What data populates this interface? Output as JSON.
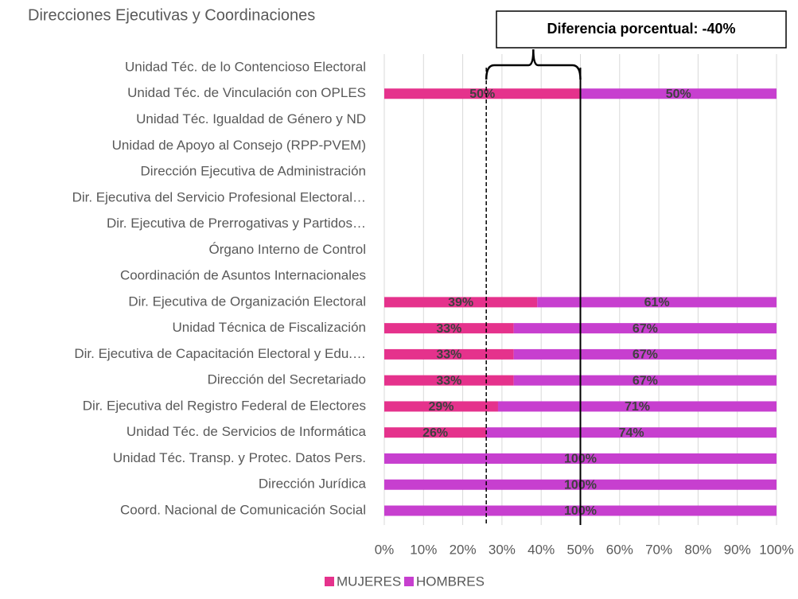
{
  "chart_data": {
    "type": "stacked_barh",
    "title": "Direcciones Ejecutivas y Coordinaciones",
    "annotation": "Diferencia porcentual: -40%",
    "categories": [
      "Unidad Téc. de lo Contencioso Electoral",
      "Unidad Téc. de Vinculación con OPLES",
      "Unidad Téc. Igualdad de Género y ND",
      "Unidad de Apoyo al Consejo (RPP-PVEM)",
      "Dirección Ejecutiva de Administración",
      "Dir. Ejecutiva del Servicio Profesional Electoral…",
      "Dir. Ejecutiva de Prerrogativas y Partidos…",
      "Órgano Interno de Control",
      "Coordinación de Asuntos Internacionales",
      "Dir. Ejecutiva de Organización Electoral",
      "Unidad Técnica de Fiscalización",
      "Dir. Ejecutiva de Capacitación Electoral y Edu.…",
      "Dirección del Secretariado",
      "Dir. Ejecutiva del Registro Federal de Electores",
      "Unidad Téc. de Servicios de Informática",
      "Unidad Téc. Transp. y Protec. Datos Pers.",
      "Dirección Jurídica",
      "Coord. Nacional de Comunicación Social"
    ],
    "series": [
      {
        "name": "MUJERES",
        "color": "#e5328c",
        "values": [
          null,
          50,
          null,
          null,
          null,
          null,
          null,
          null,
          null,
          39,
          33,
          33,
          33,
          29,
          26,
          0,
          0,
          0
        ],
        "value_labels": [
          null,
          "50%",
          null,
          null,
          null,
          null,
          null,
          null,
          null,
          "39%",
          "33%",
          "33%",
          "33%",
          "29%",
          "26%",
          null,
          null,
          null
        ]
      },
      {
        "name": "HOMBRES",
        "color": "#c73fcf",
        "values": [
          null,
          50,
          null,
          null,
          null,
          null,
          null,
          null,
          null,
          61,
          67,
          67,
          67,
          71,
          74,
          100,
          100,
          100
        ],
        "value_labels": [
          null,
          "50%",
          null,
          null,
          null,
          null,
          null,
          null,
          null,
          "61%",
          "67%",
          "67%",
          "67%",
          "71%",
          "74%",
          "100%",
          "100%",
          "100%"
        ]
      }
    ],
    "xlim": [
      0,
      100
    ],
    "xticks": [
      {
        "value": 0,
        "label": "0%"
      },
      {
        "value": 10,
        "label": "10%"
      },
      {
        "value": 20,
        "label": "20%"
      },
      {
        "value": 30,
        "label": "30%"
      },
      {
        "value": 40,
        "label": "40%"
      },
      {
        "value": 50,
        "label": "50%"
      },
      {
        "value": 60,
        "label": "60%"
      },
      {
        "value": 70,
        "label": "70%"
      },
      {
        "value": 80,
        "label": "80%"
      },
      {
        "value": 90,
        "label": "90%"
      },
      {
        "value": 100,
        "label": "100%"
      }
    ],
    "grid": true,
    "legend": "bottom",
    "reference_lines": [
      {
        "value": 26,
        "style": "dashed"
      },
      {
        "value": 50,
        "style": "solid"
      }
    ]
  }
}
